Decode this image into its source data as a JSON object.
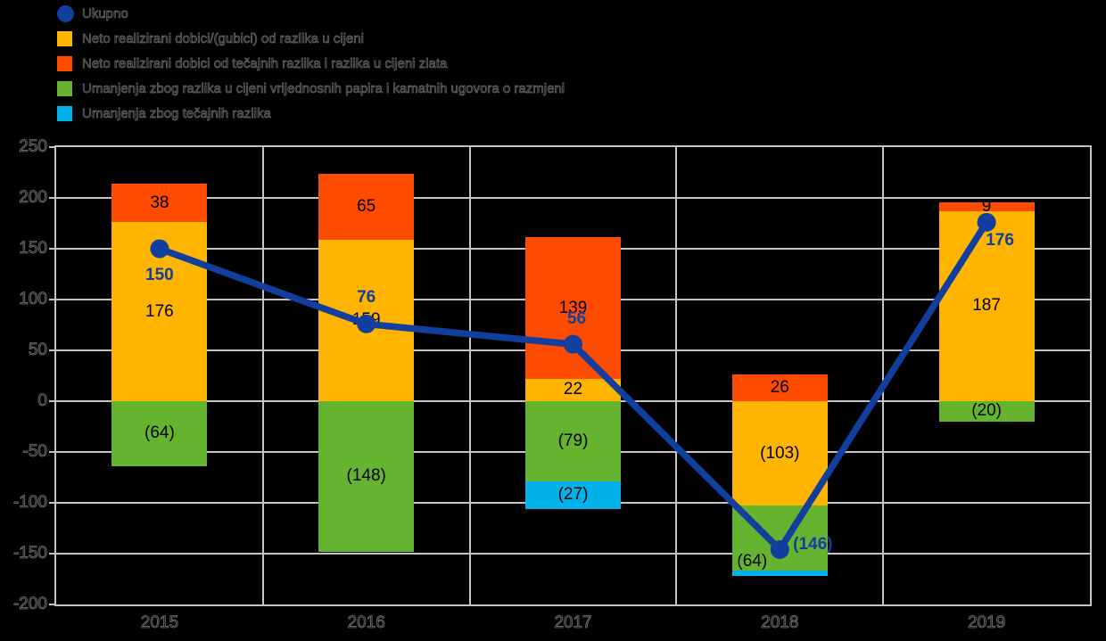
{
  "page": {
    "background": "#000000"
  },
  "legend": {
    "items": [
      {
        "label": "Ukupno",
        "marker": "circle",
        "color": "#123F9E"
      },
      {
        "label": "Neto realizirani dobici/(gubici) od razlika u cijeni",
        "marker": "square",
        "color": "#FFB400"
      },
      {
        "label": "Neto realizirani dobici od tečajnih razlika i razlika u cijeni zlata",
        "marker": "square",
        "color": "#FF4B00"
      },
      {
        "label": "Umanjenja zbog razlika u cijeni vrijednosnih papira i kamatnih ugovora o razmjeni",
        "marker": "square",
        "color": "#65B32E"
      },
      {
        "label": "Umanjenja zbog tečajnih razlika",
        "marker": "square",
        "color": "#00B1EA"
      }
    ]
  },
  "chart_data": {
    "type": "bar",
    "subtype": "stacked-bars-with-total-line",
    "categories": [
      "2015",
      "2016",
      "2017",
      "2018",
      "2019"
    ],
    "series": [
      {
        "name": "Neto realizirani dobici/(gubici) od razlika u cijeni",
        "color": "#FFB400",
        "values": [
          176,
          159,
          22,
          -103,
          187
        ],
        "labels": [
          "176",
          "159",
          "22",
          "(103)",
          "187"
        ]
      },
      {
        "name": "Neto realizirani dobici od tečajnih razlika i razlika u cijeni zlata",
        "color": "#FF4B00",
        "values": [
          38,
          65,
          139,
          26,
          9
        ],
        "labels": [
          "38",
          "65",
          "139",
          "26",
          "9"
        ]
      },
      {
        "name": "Umanjenja zbog razlika u cijeni vrijednosnih papira i kamatnih ugovora o razmjeni",
        "color": "#65B32E",
        "values": [
          -64,
          -148,
          -79,
          -64,
          -20
        ],
        "labels": [
          "(64)",
          "(148)",
          "(79)",
          "(64)",
          "(20)"
        ]
      },
      {
        "name": "Umanjenja zbog tečajnih razlika",
        "color": "#00B1EA",
        "values": [
          0,
          0,
          -27,
          -5,
          0
        ],
        "labels": [
          "",
          "",
          "(27)",
          "",
          ""
        ]
      }
    ],
    "line_series": {
      "name": "Ukupno",
      "color": "#123F9E",
      "values": [
        150,
        76,
        56,
        -146,
        176
      ],
      "labels": [
        "150",
        "76",
        "56",
        "(146)",
        "176"
      ]
    },
    "ylim": [
      -200,
      250
    ],
    "ytick_step": 50,
    "ytick_labels": [
      "250",
      "200",
      "150",
      "100",
      "50",
      "0",
      "-50",
      "-100",
      "-150",
      "-200"
    ],
    "grid": true,
    "legend_position": "top-left",
    "label_offsets": {
      "line": [
        [
          0,
          30
        ],
        [
          0,
          -29
        ],
        [
          4,
          -28
        ],
        [
          37,
          -5
        ],
        [
          15,
          21
        ]
      ],
      "segments": {
        "2-3": [
          -31,
          26
        ]
      }
    },
    "colors": {
      "grid": "#C4C4C4",
      "bar_label": "#000000",
      "axis_text_outline": "#737373"
    }
  }
}
